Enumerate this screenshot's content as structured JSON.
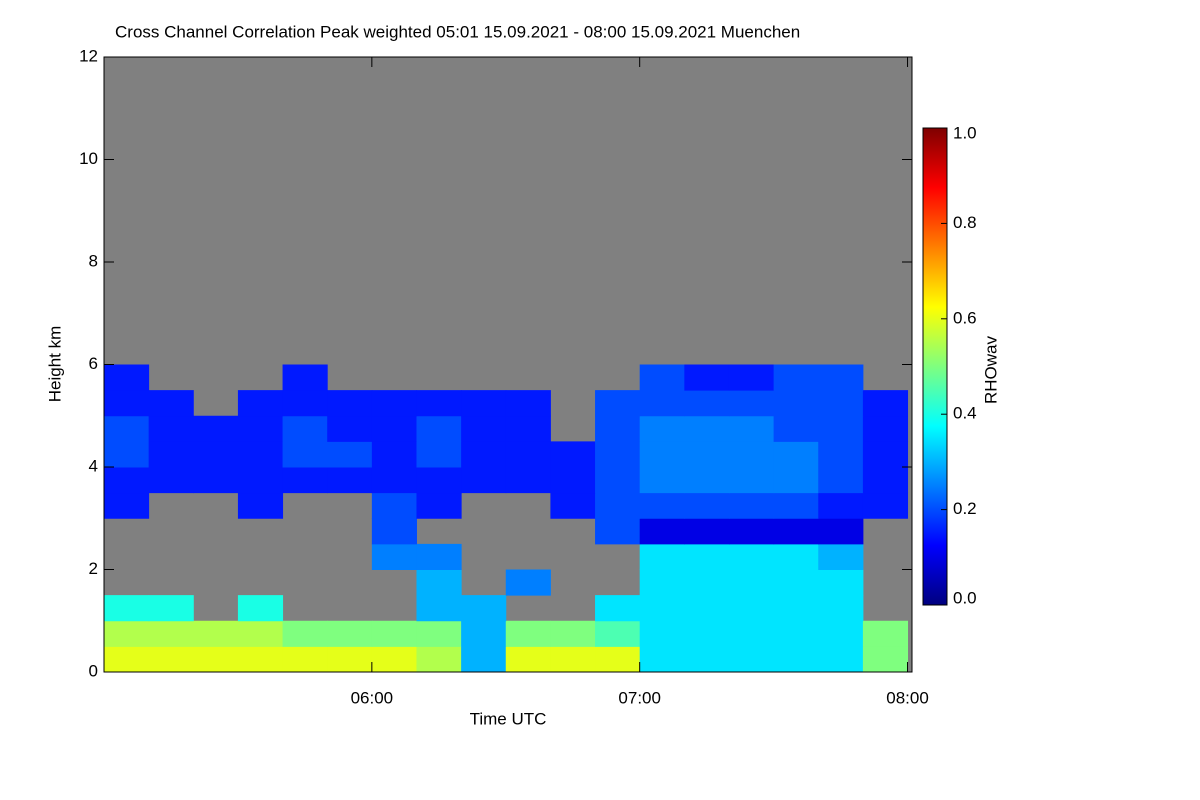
{
  "chart_data": {
    "type": "heatmap",
    "title": "Cross Channel Correlation Peak weighted   05:01 15.09.2021 - 08:00 15.09.2021 Muenchen",
    "xlabel": "Time UTC",
    "ylabel": "Height km",
    "colorbar_label": "RHOwav",
    "xlim": [
      300,
      481
    ],
    "xticks": [
      {
        "value": 360,
        "label": "06:00"
      },
      {
        "value": 420,
        "label": "07:00"
      },
      {
        "value": 480,
        "label": "08:00"
      }
    ],
    "ylim": [
      0,
      12
    ],
    "yticks": [
      0,
      2,
      4,
      6,
      8,
      10,
      12
    ],
    "clim": [
      0,
      1
    ],
    "cticks": [
      {
        "value": 0,
        "label": "0.0"
      },
      {
        "value": 0.2,
        "label": "0.2"
      },
      {
        "value": 0.4,
        "label": "0.4"
      },
      {
        "value": 0.6,
        "label": "0.6"
      },
      {
        "value": 0.8,
        "label": "0.8"
      },
      {
        "value": 1,
        "label": "1.0"
      }
    ],
    "colormap": [
      "#00007f",
      "#0000ff",
      "#007fff",
      "#00ffff",
      "#7fff7f",
      "#ffff00",
      "#ff7f00",
      "#ff0000",
      "#7f0000"
    ],
    "missing_color": "#808080",
    "x_edges": [
      300,
      310,
      320,
      330,
      340,
      350,
      360,
      370,
      380,
      390,
      400,
      410,
      420,
      430,
      440,
      450,
      460,
      470,
      480
    ],
    "y_edges": [
      0,
      0.5,
      1,
      1.5,
      2,
      2.5,
      3,
      3.5,
      4,
      4.5,
      5,
      5.5,
      6
    ],
    "z": [
      [
        0.6,
        0.6,
        0.6,
        0.6,
        0.6,
        0.6,
        0.6,
        0.55,
        0.3,
        0.6,
        0.6,
        0.6,
        0.35,
        0.35,
        0.35,
        0.35,
        0.35,
        0.5
      ],
      [
        0.55,
        0.55,
        0.55,
        0.55,
        0.5,
        0.5,
        0.5,
        0.5,
        0.3,
        0.5,
        0.5,
        0.45,
        0.35,
        0.35,
        0.35,
        0.35,
        0.35,
        0.5
      ],
      [
        0.4,
        0.4,
        null,
        0.4,
        null,
        null,
        null,
        0.3,
        0.3,
        null,
        null,
        0.35,
        0.35,
        0.35,
        0.35,
        0.35,
        0.35,
        null
      ],
      [
        null,
        null,
        null,
        null,
        null,
        null,
        null,
        0.3,
        null,
        0.25,
        null,
        null,
        0.35,
        0.35,
        0.35,
        0.35,
        0.35,
        null
      ],
      [
        null,
        null,
        null,
        null,
        null,
        null,
        0.25,
        0.25,
        null,
        null,
        null,
        null,
        0.35,
        0.35,
        0.35,
        0.35,
        0.3,
        null
      ],
      [
        null,
        null,
        null,
        null,
        null,
        null,
        0.2,
        null,
        null,
        null,
        null,
        0.2,
        0.1,
        0.1,
        0.1,
        0.1,
        0.1,
        null
      ],
      [
        0.15,
        null,
        null,
        0.15,
        null,
        null,
        0.2,
        0.15,
        null,
        null,
        0.15,
        0.2,
        0.2,
        0.2,
        0.2,
        0.2,
        0.15,
        0.15
      ],
      [
        0.15,
        0.15,
        0.15,
        0.15,
        0.15,
        0.15,
        0.15,
        0.15,
        0.15,
        0.15,
        0.15,
        0.2,
        0.25,
        0.25,
        0.25,
        0.25,
        0.2,
        0.15
      ],
      [
        0.2,
        0.15,
        0.15,
        0.15,
        0.2,
        0.2,
        0.15,
        0.2,
        0.15,
        0.15,
        0.15,
        0.2,
        0.25,
        0.25,
        0.25,
        0.25,
        0.2,
        0.15
      ],
      [
        0.2,
        0.15,
        0.15,
        0.15,
        0.2,
        0.15,
        0.15,
        0.2,
        0.15,
        0.15,
        null,
        0.2,
        0.25,
        0.25,
        0.25,
        0.2,
        0.2,
        0.15
      ],
      [
        0.15,
        0.15,
        null,
        0.15,
        0.15,
        0.15,
        0.15,
        0.15,
        0.15,
        0.15,
        null,
        0.2,
        0.2,
        0.2,
        0.2,
        0.2,
        0.2,
        0.15
      ],
      [
        0.15,
        null,
        null,
        null,
        0.15,
        null,
        null,
        null,
        null,
        null,
        null,
        null,
        0.2,
        0.15,
        0.15,
        0.2,
        0.2,
        null
      ]
    ]
  }
}
